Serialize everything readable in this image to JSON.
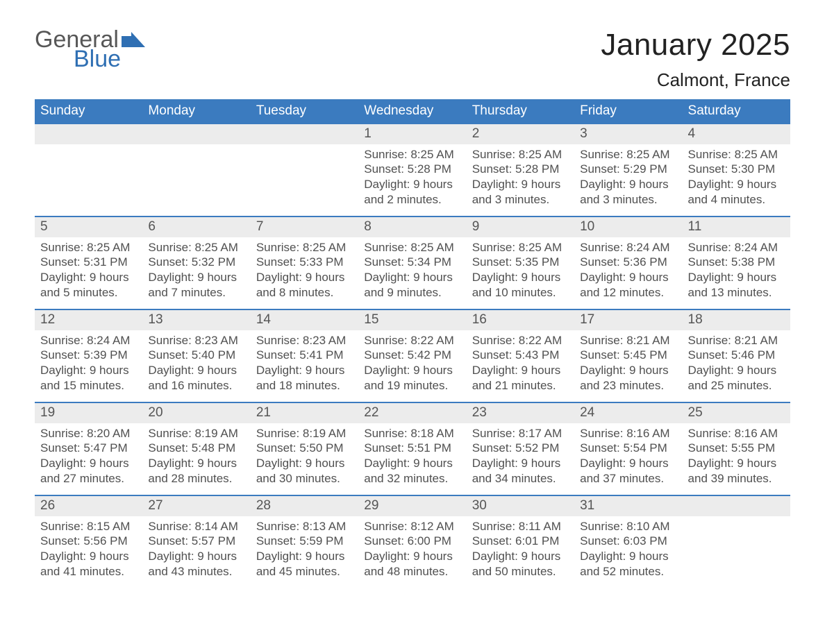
{
  "logo": {
    "word1": "General",
    "word2": "Blue"
  },
  "title": "January 2025",
  "location": "Calmont, France",
  "colors": {
    "header_blue": "#3b7bbf",
    "row_border": "#3b7bbf",
    "day_bg": "#ececec",
    "text_dark": "#333333",
    "text_muted": "#505050",
    "logo_gray": "#575757",
    "logo_blue": "#2f6fb3",
    "background": "#ffffff"
  },
  "weekdays": [
    "Sunday",
    "Monday",
    "Tuesday",
    "Wednesday",
    "Thursday",
    "Friday",
    "Saturday"
  ],
  "labels": {
    "sunrise": "Sunrise:",
    "sunset": "Sunset:",
    "daylight": "Daylight:"
  },
  "weeks": [
    [
      null,
      null,
      null,
      {
        "day": "1",
        "sunrise": "8:25 AM",
        "sunset": "5:28 PM",
        "daylight": "9 hours and 2 minutes."
      },
      {
        "day": "2",
        "sunrise": "8:25 AM",
        "sunset": "5:28 PM",
        "daylight": "9 hours and 3 minutes."
      },
      {
        "day": "3",
        "sunrise": "8:25 AM",
        "sunset": "5:29 PM",
        "daylight": "9 hours and 3 minutes."
      },
      {
        "day": "4",
        "sunrise": "8:25 AM",
        "sunset": "5:30 PM",
        "daylight": "9 hours and 4 minutes."
      }
    ],
    [
      {
        "day": "5",
        "sunrise": "8:25 AM",
        "sunset": "5:31 PM",
        "daylight": "9 hours and 5 minutes."
      },
      {
        "day": "6",
        "sunrise": "8:25 AM",
        "sunset": "5:32 PM",
        "daylight": "9 hours and 7 minutes."
      },
      {
        "day": "7",
        "sunrise": "8:25 AM",
        "sunset": "5:33 PM",
        "daylight": "9 hours and 8 minutes."
      },
      {
        "day": "8",
        "sunrise": "8:25 AM",
        "sunset": "5:34 PM",
        "daylight": "9 hours and 9 minutes."
      },
      {
        "day": "9",
        "sunrise": "8:25 AM",
        "sunset": "5:35 PM",
        "daylight": "9 hours and 10 minutes."
      },
      {
        "day": "10",
        "sunrise": "8:24 AM",
        "sunset": "5:36 PM",
        "daylight": "9 hours and 12 minutes."
      },
      {
        "day": "11",
        "sunrise": "8:24 AM",
        "sunset": "5:38 PM",
        "daylight": "9 hours and 13 minutes."
      }
    ],
    [
      {
        "day": "12",
        "sunrise": "8:24 AM",
        "sunset": "5:39 PM",
        "daylight": "9 hours and 15 minutes."
      },
      {
        "day": "13",
        "sunrise": "8:23 AM",
        "sunset": "5:40 PM",
        "daylight": "9 hours and 16 minutes."
      },
      {
        "day": "14",
        "sunrise": "8:23 AM",
        "sunset": "5:41 PM",
        "daylight": "9 hours and 18 minutes."
      },
      {
        "day": "15",
        "sunrise": "8:22 AM",
        "sunset": "5:42 PM",
        "daylight": "9 hours and 19 minutes."
      },
      {
        "day": "16",
        "sunrise": "8:22 AM",
        "sunset": "5:43 PM",
        "daylight": "9 hours and 21 minutes."
      },
      {
        "day": "17",
        "sunrise": "8:21 AM",
        "sunset": "5:45 PM",
        "daylight": "9 hours and 23 minutes."
      },
      {
        "day": "18",
        "sunrise": "8:21 AM",
        "sunset": "5:46 PM",
        "daylight": "9 hours and 25 minutes."
      }
    ],
    [
      {
        "day": "19",
        "sunrise": "8:20 AM",
        "sunset": "5:47 PM",
        "daylight": "9 hours and 27 minutes."
      },
      {
        "day": "20",
        "sunrise": "8:19 AM",
        "sunset": "5:48 PM",
        "daylight": "9 hours and 28 minutes."
      },
      {
        "day": "21",
        "sunrise": "8:19 AM",
        "sunset": "5:50 PM",
        "daylight": "9 hours and 30 minutes."
      },
      {
        "day": "22",
        "sunrise": "8:18 AM",
        "sunset": "5:51 PM",
        "daylight": "9 hours and 32 minutes."
      },
      {
        "day": "23",
        "sunrise": "8:17 AM",
        "sunset": "5:52 PM",
        "daylight": "9 hours and 34 minutes."
      },
      {
        "day": "24",
        "sunrise": "8:16 AM",
        "sunset": "5:54 PM",
        "daylight": "9 hours and 37 minutes."
      },
      {
        "day": "25",
        "sunrise": "8:16 AM",
        "sunset": "5:55 PM",
        "daylight": "9 hours and 39 minutes."
      }
    ],
    [
      {
        "day": "26",
        "sunrise": "8:15 AM",
        "sunset": "5:56 PM",
        "daylight": "9 hours and 41 minutes."
      },
      {
        "day": "27",
        "sunrise": "8:14 AM",
        "sunset": "5:57 PM",
        "daylight": "9 hours and 43 minutes."
      },
      {
        "day": "28",
        "sunrise": "8:13 AM",
        "sunset": "5:59 PM",
        "daylight": "9 hours and 45 minutes."
      },
      {
        "day": "29",
        "sunrise": "8:12 AM",
        "sunset": "6:00 PM",
        "daylight": "9 hours and 48 minutes."
      },
      {
        "day": "30",
        "sunrise": "8:11 AM",
        "sunset": "6:01 PM",
        "daylight": "9 hours and 50 minutes."
      },
      {
        "day": "31",
        "sunrise": "8:10 AM",
        "sunset": "6:03 PM",
        "daylight": "9 hours and 52 minutes."
      },
      null
    ]
  ]
}
